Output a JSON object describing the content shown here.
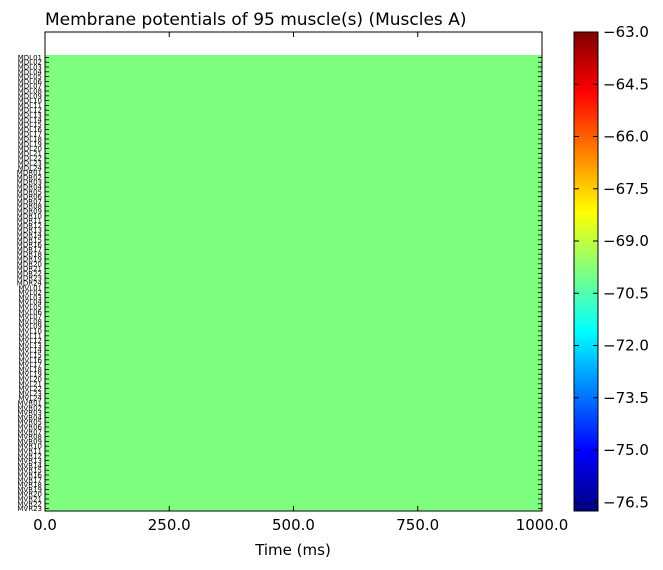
{
  "chart_data": {
    "type": "heatmap",
    "title": "Membrane potentials of 95 muscle(s) (Muscles A)",
    "xlabel": "Time (ms)",
    "ylabel": "",
    "xlim": [
      0,
      1000
    ],
    "x_ticks": [
      "0.0",
      "250.0",
      "500.0",
      "750.0",
      "1000.0"
    ],
    "colorbar": {
      "colormap": "jet",
      "range": [
        -76.75,
        -63.0
      ],
      "ticks": [
        "−63.0",
        "−64.5",
        "−66.0",
        "−67.5",
        "−69.0",
        "−70.5",
        "−72.0",
        "−73.5",
        "−75.0",
        "−76.5"
      ],
      "tick_values": [
        -63.0,
        -64.5,
        -66.0,
        -67.5,
        -69.0,
        -70.5,
        -72.0,
        -73.5,
        -75.0,
        -76.5
      ]
    },
    "value": -70.0,
    "fill_color": "#7fff7f",
    "rows": [
      "MDL01",
      "MDL02",
      "MDL03",
      "MDL04",
      "MDL05",
      "MDL06",
      "MDL07",
      "MDL08",
      "MDL09",
      "MDL10",
      "MDL11",
      "MDL12",
      "MDL13",
      "MDL14",
      "MDL15",
      "MDL16",
      "MDL17",
      "MDL18",
      "MDL19",
      "MDL20",
      "MDL21",
      "MDL22",
      "MDL23",
      "MDL24",
      "MDR01",
      "MDR02",
      "MDR03",
      "MDR04",
      "MDR05",
      "MDR06",
      "MDR07",
      "MDR08",
      "MDR09",
      "MDR10",
      "MDR11",
      "MDR12",
      "MDR13",
      "MDR14",
      "MDR15",
      "MDR16",
      "MDR17",
      "MDR18",
      "MDR19",
      "MDR20",
      "MDR21",
      "MDR22",
      "MDR23",
      "MDR24",
      "MVL01",
      "MVL02",
      "MVL03",
      "MVL04",
      "MVL05",
      "MVL06",
      "MVL07",
      "MVL08",
      "MVL09",
      "MVL10",
      "MVL11",
      "MVL12",
      "MVL13",
      "MVL14",
      "MVL15",
      "MVL16",
      "MVL17",
      "MVL18",
      "MVL19",
      "MVL20",
      "MVL21",
      "MVL22",
      "MVL23",
      "MVL24",
      "MVR01",
      "MVR02",
      "MVR03",
      "MVR04",
      "MVR05",
      "MVR06",
      "MVR07",
      "MVR08",
      "MVR09",
      "MVR10",
      "MVR11",
      "MVR12",
      "MVR13",
      "MVR14",
      "MVR15",
      "MVR16",
      "MVR17",
      "MVR18",
      "MVR19",
      "MVR20",
      "MVR21",
      "MVR22",
      "MVR23"
    ]
  }
}
